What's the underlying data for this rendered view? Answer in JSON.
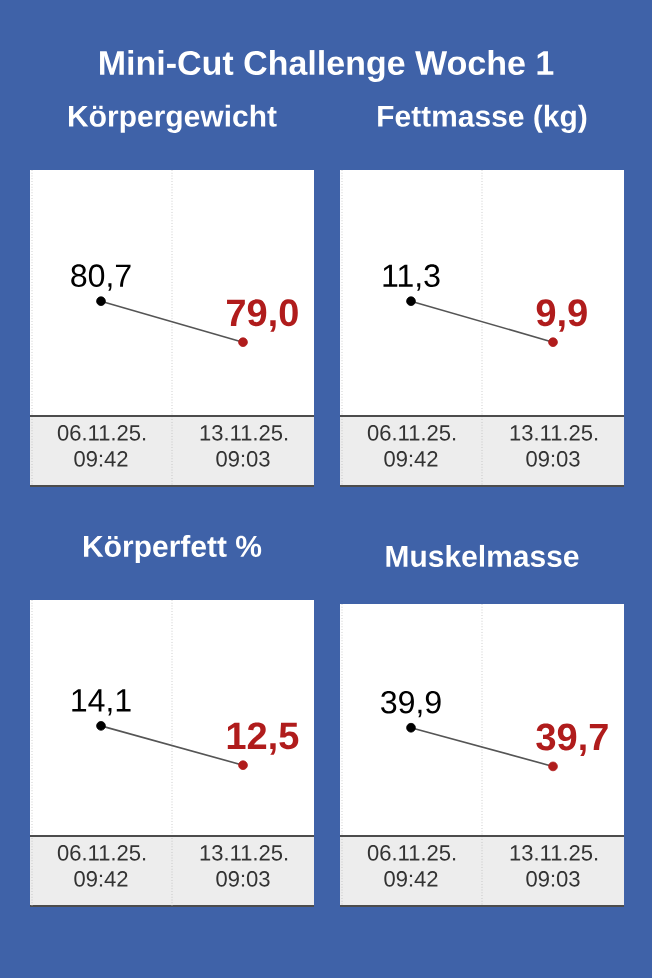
{
  "chart_data": [
    {
      "type": "other",
      "title": "Mini-Cut Challenge Woche 1"
    },
    {
      "type": "line",
      "title": "Körpergewicht",
      "categories": [
        "06.11.25. 09:42",
        "13.11.25. 09:03"
      ],
      "values": [
        80.7,
        79.0
      ],
      "value_labels": [
        "80,7",
        "79,0"
      ],
      "color": "#555555",
      "colors": [
        "#000000",
        "#b01c1c"
      ],
      "marker": "circle"
    },
    {
      "type": "line",
      "title": "Fettmasse (kg)",
      "categories": [
        "06.11.25. 09:42",
        "13.11.25. 09:03"
      ],
      "values": [
        11.3,
        9.9
      ],
      "value_labels": [
        "11,3",
        "9,9"
      ],
      "color": "#555555",
      "colors": [
        "#000000",
        "#b01c1c"
      ],
      "marker": "circle"
    },
    {
      "type": "line",
      "title": "Körperfett %",
      "categories": [
        "06.11.25. 09:42",
        "13.11.25. 09:03"
      ],
      "values": [
        14.1,
        12.5
      ],
      "value_labels": [
        "14,1",
        "12,5"
      ],
      "color": "#555555",
      "colors": [
        "#000000",
        "#b01c1c"
      ],
      "marker": "circle"
    },
    {
      "type": "line",
      "title": "Muskelmasse",
      "categories": [
        "06.11.25. 09:42",
        "13.11.25. 09:03"
      ],
      "values": [
        39.9,
        39.7
      ],
      "value_labels": [
        "39,9",
        "39,7"
      ],
      "color": "#555555",
      "colors": [
        "#000000",
        "#b01c1c"
      ],
      "marker": "circle"
    }
  ]
}
